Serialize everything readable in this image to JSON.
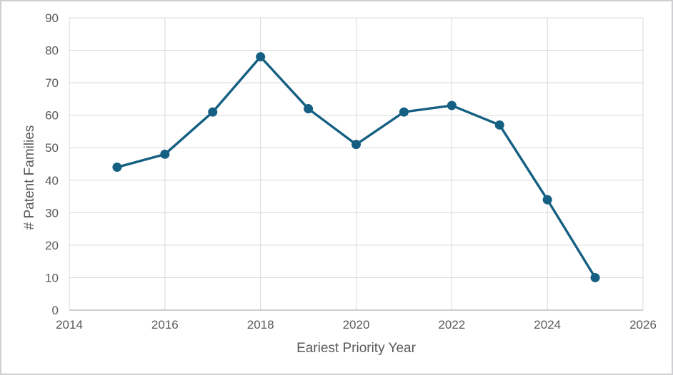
{
  "chart_data": {
    "type": "line",
    "title": "",
    "xlabel": "Eariest Priority Year",
    "ylabel": "# Patent Families",
    "x": [
      2015,
      2016,
      2017,
      2018,
      2019,
      2020,
      2021,
      2022,
      2023,
      2024,
      2025
    ],
    "y": [
      44,
      48,
      61,
      78,
      62,
      51,
      61,
      63,
      57,
      34,
      10
    ],
    "series_name": "# Patent Families",
    "xlim": [
      2014,
      2026
    ],
    "ylim": [
      0,
      90
    ],
    "x_ticks": [
      2014,
      2016,
      2018,
      2020,
      2022,
      2024,
      2026
    ],
    "y_ticks": [
      0,
      10,
      20,
      30,
      40,
      50,
      60,
      70,
      80,
      90
    ],
    "grid": true,
    "legend": false,
    "colors": {
      "line": "#156082",
      "marker": "#156082",
      "gridline": "#D9D9D9",
      "axis_line": "#BFBFBF",
      "tick_text": "#595959",
      "title_text": "#595959",
      "border": "#CFCFD2",
      "background": "#FFFFFF"
    }
  }
}
